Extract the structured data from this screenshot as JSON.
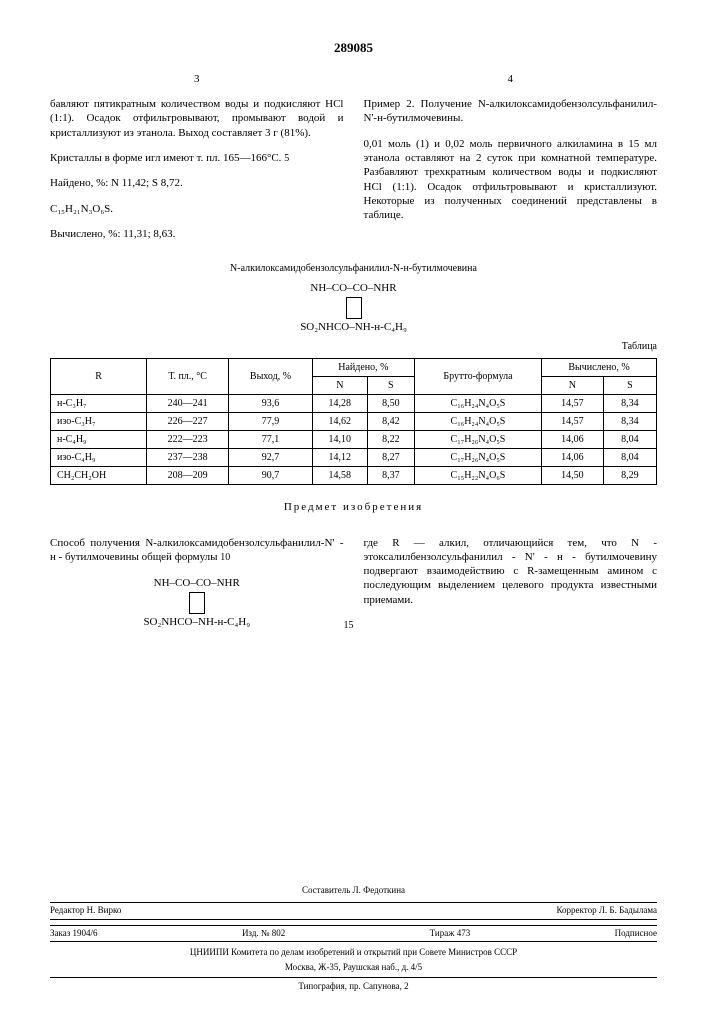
{
  "patent_number": "289085",
  "col3_num": "3",
  "col4_num": "4",
  "col3_text1": "бавляют пятикратным количеством воды и подкисляют HCl (1:1). Осадок отфильтровывают, промывают водой и кристаллизуют из этанола. Выход составляет 3 г (81%).",
  "col3_text2": "Кристаллы в форме игл имеют т. пл. 165—166°С.",
  "col3_text3": "Найдено, %: N 11,42; S 8,72.",
  "col3_text4": "C₁₅H₂₁N₃O₆S.",
  "col3_text5": "Вычислено, %: 11,31; 8,63.",
  "col4_text1": "Пример 2. Получение N-алкилоксамидобензолсульфанилил-N'-н-бутилмочевины.",
  "col4_text2": "0,01 моль (1) и 0,02 моль первичного алкиламина в 15 мл этанола оставляют на 2 суток при комнатной температуре. Разбавляют трехкратным количеством воды и подкисляют HCl (1:1). Осадок отфильтровывают и кристаллизуют. Некоторые из полученных соединений представлены в таблице.",
  "compound_title": "N-алкилоксамидобензолсульфанилил-N-н-бутилмочевина",
  "formula_top": "NH–CO–CO–NHR",
  "formula_bottom": "SO₂NHCO–NH-н-C₄H₉",
  "table_label": "Таблица",
  "table": {
    "headers": {
      "r": "R",
      "mp": "Т. пл., °С",
      "yield": "Выход, %",
      "found": "Найдено, %",
      "formula": "Брутто-формула",
      "calc": "Вычислено, %",
      "n": "N",
      "s": "S"
    },
    "rows": [
      {
        "r": "н-C₃H₇",
        "mp": "240—241",
        "yield": "93,6",
        "fn": "14,28",
        "fs": "8,50",
        "formula": "C₁₆H₂₄N₄O₅S",
        "cn": "14,57",
        "cs": "8,34"
      },
      {
        "r": "изо-C₃H₇",
        "mp": "226—227",
        "yield": "77,9",
        "fn": "14,62",
        "fs": "8,42",
        "formula": "C₁₆H₂₄N₄O₅S",
        "cn": "14,57",
        "cs": "8,34"
      },
      {
        "r": "н-C₄H₉",
        "mp": "222—223",
        "yield": "77,1",
        "fn": "14,10",
        "fs": "8,22",
        "formula": "C₁₇H₂₆N₄O₅S",
        "cn": "14,06",
        "cs": "8,04"
      },
      {
        "r": "изо-C₄H₉",
        "mp": "237—238",
        "yield": "92,7",
        "fn": "14,12",
        "fs": "8,27",
        "formula": "C₁₇H₂₆N₄O₅S",
        "cn": "14,06",
        "cs": "8,04"
      },
      {
        "r": "CH₂CH₂OH",
        "mp": "208—209",
        "yield": "90,7",
        "fn": "14,58",
        "fs": "8,37",
        "formula": "C₁₅H₂₂N₄O₆S",
        "cn": "14,50",
        "cs": "8,29"
      }
    ]
  },
  "claims_title": "Предмет изобретения",
  "claim_left": "Способ получения N-алкилоксамидобензолсульфанилил-N' - н - бутилмочевины общей формулы",
  "claim_right": "где R — алкил, отличающийся тем, что N - этоксалилбензолсульфанилил - N' - н - бутилмочевину подвергают взаимодействию с R-замещенным амином с последующим выделением целевого продукта известными приемами.",
  "marker5": "5",
  "marker10": "10",
  "marker15": "15",
  "footer": {
    "compiler": "Составитель Л. Федоткина",
    "editor": "Редактор Н. Вирко",
    "corrector": "Корректор Л. Б. Бадылама",
    "order": "Заказ 1904/6",
    "pub": "Изд. № 802",
    "tirage": "Тираж 473",
    "subscription": "Подписное",
    "org": "ЦНИИПИ Комитета по делам изобретений и открытий при Совете Министров СССР",
    "address": "Москва, Ж-35, Раушская наб., д. 4/5",
    "typography": "Типография, пр. Сапунова, 2"
  }
}
